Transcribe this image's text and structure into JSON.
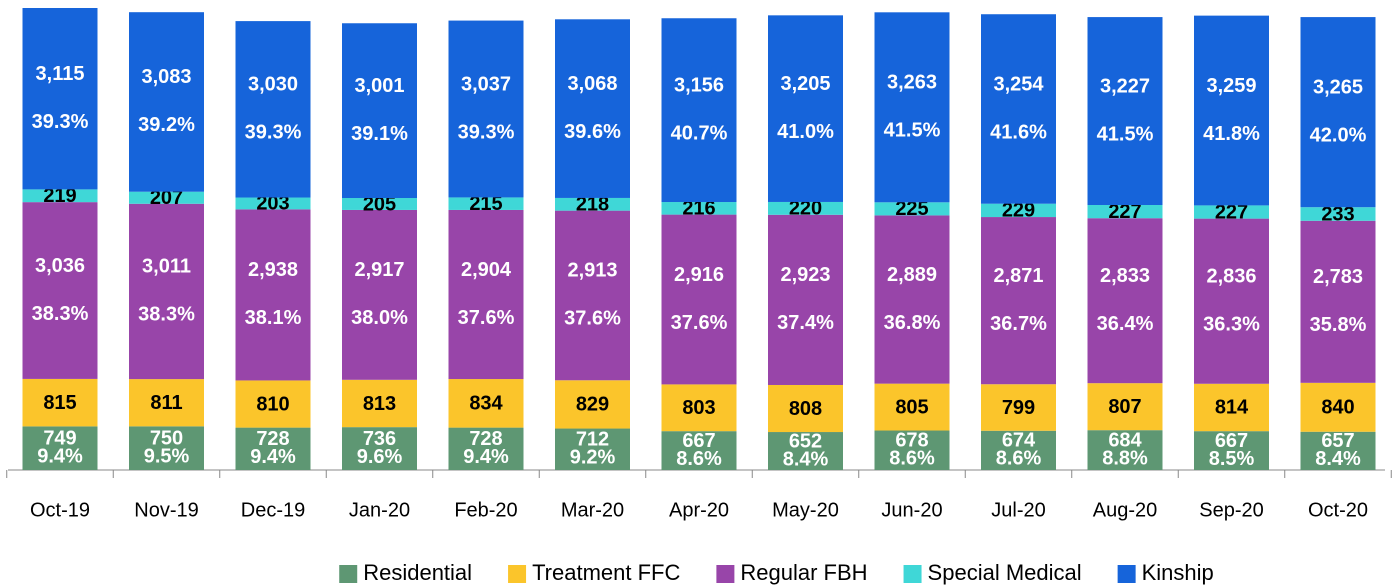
{
  "chart_data": {
    "type": "stacked_bar",
    "categories": [
      "Oct-19",
      "Nov-19",
      "Dec-19",
      "Jan-20",
      "Feb-20",
      "Mar-20",
      "Apr-20",
      "May-20",
      "Jun-20",
      "Jul-20",
      "Aug-20",
      "Sep-20",
      "Oct-20"
    ],
    "series": [
      {
        "name": "Residential",
        "color": "#5e9773",
        "label_color": "#ffffff",
        "values": [
          749,
          750,
          728,
          736,
          728,
          712,
          667,
          652,
          678,
          674,
          684,
          667,
          657
        ],
        "share_labels": [
          "9.4%",
          "9.5%",
          "9.4%",
          "9.6%",
          "9.4%",
          "9.2%",
          "8.6%",
          "8.4%",
          "8.6%",
          "8.6%",
          "8.8%",
          "8.5%",
          "8.4%"
        ]
      },
      {
        "name": "Treatment FFC",
        "color": "#fbc52b",
        "label_color": "#000000",
        "values": [
          815,
          811,
          810,
          813,
          834,
          829,
          803,
          808,
          805,
          799,
          807,
          814,
          840
        ]
      },
      {
        "name": "Regular FBH",
        "color": "#9845a9",
        "label_color": "#ffffff",
        "values": [
          3036,
          3011,
          2938,
          2917,
          2904,
          2913,
          2916,
          2923,
          2889,
          2871,
          2833,
          2836,
          2783
        ],
        "value_labels": [
          "3,036",
          "3,011",
          "2,938",
          "2,917",
          "2,904",
          "2,913",
          "2,916",
          "2,923",
          "2,889",
          "2,871",
          "2,833",
          "2,836",
          "2,783"
        ],
        "share_labels": [
          "38.3%",
          "38.3%",
          "38.1%",
          "38.0%",
          "37.6%",
          "37.6%",
          "37.6%",
          "37.4%",
          "36.8%",
          "36.7%",
          "36.4%",
          "36.3%",
          "35.8%"
        ]
      },
      {
        "name": "Special Medical",
        "color": "#3fd7d7",
        "label_color": "#000000",
        "values": [
          219,
          207,
          203,
          205,
          215,
          218,
          216,
          220,
          225,
          229,
          227,
          227,
          233
        ]
      },
      {
        "name": "Kinship",
        "color": "#1664da",
        "label_color": "#ffffff",
        "values": [
          3115,
          3083,
          3030,
          3001,
          3037,
          3068,
          3156,
          3205,
          3263,
          3254,
          3227,
          3259,
          3265
        ],
        "value_labels": [
          "3,115",
          "3,083",
          "3,030",
          "3,001",
          "3,037",
          "3,068",
          "3,156",
          "3,205",
          "3,263",
          "3,254",
          "3,227",
          "3,259",
          "3,265"
        ],
        "share_labels": [
          "39.3%",
          "39.2%",
          "39.3%",
          "39.1%",
          "39.3%",
          "39.6%",
          "40.7%",
          "41.0%",
          "41.5%",
          "41.6%",
          "41.5%",
          "41.8%",
          "42.0%"
        ]
      }
    ],
    "legend": "bottom"
  }
}
